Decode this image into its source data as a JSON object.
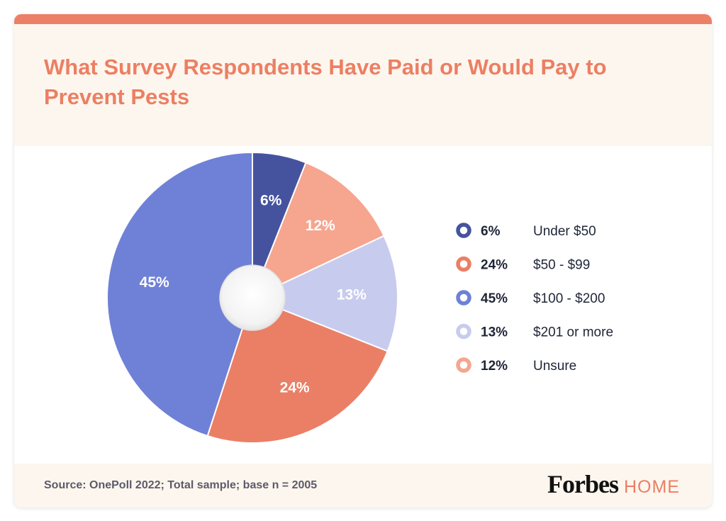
{
  "chart_data": {
    "type": "pie",
    "title": "What Survey Respondents Have Paid or Would Pay to Prevent Pests",
    "slices": [
      {
        "label": "Under $50",
        "value": 6,
        "display": "6%",
        "color": "#45539f"
      },
      {
        "label": "Unsure",
        "value": 12,
        "display": "12%",
        "color": "#f6a58f"
      },
      {
        "label": "$201 or more",
        "value": 13,
        "display": "13%",
        "color": "#c7cbee"
      },
      {
        "label": "$50 - $99",
        "value": 24,
        "display": "24%",
        "color": "#ea7f66"
      },
      {
        "label": "$100 - $200",
        "value": 45,
        "display": "45%",
        "color": "#6f81d6"
      }
    ],
    "legend": [
      {
        "pct": "6%",
        "label": "Under $50",
        "color": "#45539f"
      },
      {
        "pct": "24%",
        "label": "$50 - $99",
        "color": "#ea7f66"
      },
      {
        "pct": "45%",
        "label": "$100 - $200",
        "color": "#6f81d6"
      },
      {
        "pct": "13%",
        "label": "$201 or more",
        "color": "#c7cbee"
      },
      {
        "pct": "12%",
        "label": "Unsure",
        "color": "#f6a58f"
      }
    ],
    "legend_position": "right"
  },
  "footer": {
    "source": "Source: OnePoll 2022; Total sample; base n = 2005",
    "brand_name": "Forbes",
    "brand_sub": "HOME"
  },
  "colors": {
    "accent": "#ec7f63",
    "header_bg": "#fdf6ee"
  }
}
